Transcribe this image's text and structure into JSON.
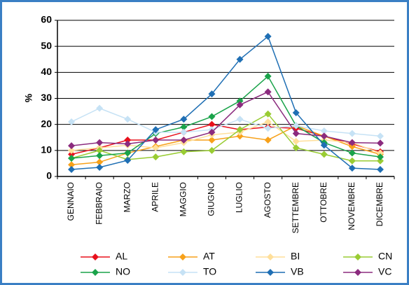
{
  "chart_data": {
    "type": "line",
    "y_label": "%",
    "categories": [
      "GENNAIO",
      "FEBBRAIO",
      "MARZO",
      "APRILE",
      "MAGGIO",
      "GIUGNO",
      "LUGLIO",
      "AGOSTO",
      "SETTEMBRE",
      "OTTOBRE",
      "NOVEMBRE",
      "DICEMBRE"
    ],
    "ylim": [
      0,
      60
    ],
    "yticks": [
      0,
      10,
      20,
      30,
      40,
      50,
      60
    ],
    "grid": true,
    "series": [
      {
        "name": "AL",
        "color": "#e8101c",
        "values": [
          8.5,
          11,
          14,
          14,
          17,
          20,
          18,
          19,
          18.5,
          15.5,
          12.5,
          9.5
        ]
      },
      {
        "name": "AT",
        "color": "#f7a11a",
        "values": [
          4.5,
          5.5,
          9,
          11.5,
          14,
          14,
          15.5,
          14,
          19.5,
          15.5,
          11.5,
          8.5
        ]
      },
      {
        "name": "BI",
        "color": "#ffdf9a",
        "values": [
          10,
          11,
          12,
          11,
          13,
          16,
          17,
          21,
          13.5,
          14,
          13,
          9
        ]
      },
      {
        "name": "CN",
        "color": "#99cc33",
        "values": [
          7,
          10,
          6.5,
          7.5,
          9.5,
          10,
          18,
          24,
          11,
          8.5,
          6,
          6
        ]
      },
      {
        "name": "NO",
        "color": "#1aa34a",
        "values": [
          7,
          8,
          9,
          16.5,
          19,
          23,
          29,
          38.5,
          19.5,
          13,
          9,
          7.5
        ]
      },
      {
        "name": "TO",
        "color": "#c6e2f5",
        "values": [
          21,
          26.2,
          22,
          17,
          17,
          18,
          22,
          18.5,
          19.5,
          17.5,
          16.5,
          15.5
        ]
      },
      {
        "name": "VB",
        "color": "#1f6fb4",
        "values": [
          2.7,
          3.5,
          6.2,
          18,
          22,
          31.7,
          45,
          53.8,
          24.5,
          12,
          3.2,
          2.7
        ]
      },
      {
        "name": "VC",
        "color": "#8b2b7e",
        "values": [
          11.8,
          13,
          12.5,
          14,
          14,
          17,
          27.5,
          32.5,
          16.5,
          15.5,
          13,
          12.8
        ]
      }
    ]
  }
}
